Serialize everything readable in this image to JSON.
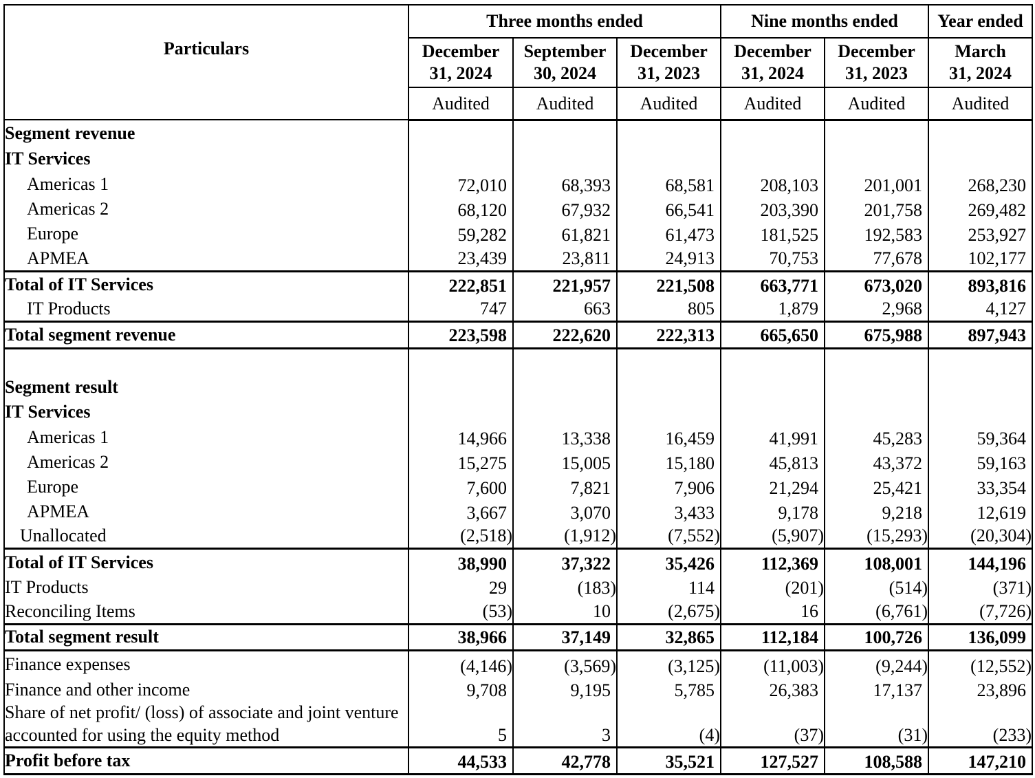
{
  "header": {
    "particulars": "Particulars",
    "groups": [
      "Three months ended",
      "Nine months ended",
      "Year ended"
    ],
    "dates": [
      [
        "December",
        "31, 2024"
      ],
      [
        "September",
        "30, 2024"
      ],
      [
        "December",
        "31, 2023"
      ],
      [
        "December",
        "31, 2024"
      ],
      [
        "December",
        "31, 2023"
      ],
      [
        "March",
        "31, 2024"
      ]
    ],
    "status": [
      "Audited",
      "Audited",
      "Audited",
      "Audited",
      "Audited",
      "Audited"
    ]
  },
  "rows": [
    {
      "label": "Segment revenue",
      "type": "heading",
      "values": []
    },
    {
      "label": "IT Services",
      "type": "heading",
      "values": []
    },
    {
      "label": "Americas 1",
      "type": "indent",
      "values": [
        "72,010",
        "68,393",
        "68,581",
        "208,103",
        "201,001",
        "268,230"
      ]
    },
    {
      "label": "Americas 2",
      "type": "indent",
      "values": [
        "68,120",
        "67,932",
        "66,541",
        "203,390",
        "201,758",
        "269,482"
      ]
    },
    {
      "label": "Europe",
      "type": "indent",
      "values": [
        "59,282",
        "61,821",
        "61,473",
        "181,525",
        "192,583",
        "253,927"
      ]
    },
    {
      "label": "APMEA",
      "type": "indent",
      "values": [
        "23,439",
        "23,811",
        "24,913",
        "70,753",
        "77,678",
        "102,177"
      ]
    },
    {
      "label": "Total of IT Services",
      "type": "total",
      "values": [
        "222,851",
        "221,957",
        "221,508",
        "663,771",
        "673,020",
        "893,816"
      ]
    },
    {
      "label": "IT Products",
      "type": "indent",
      "values": [
        "747",
        "663",
        "805",
        "1,879",
        "2,968",
        "4,127"
      ]
    },
    {
      "label": "Total segment revenue",
      "type": "grand",
      "values": [
        "223,598",
        "222,620",
        "222,313",
        "665,650",
        "675,988",
        "897,943"
      ]
    },
    {
      "label": "",
      "type": "blank",
      "values": []
    },
    {
      "label": "Segment result",
      "type": "heading",
      "values": []
    },
    {
      "label": "IT Services",
      "type": "heading",
      "values": []
    },
    {
      "label": "Americas 1",
      "type": "indent",
      "values": [
        "14,966",
        "13,338",
        "16,459",
        "41,991",
        "45,283",
        "59,364"
      ]
    },
    {
      "label": "Americas 2",
      "type": "indent",
      "values": [
        "15,275",
        "15,005",
        "15,180",
        "45,813",
        "43,372",
        "59,163"
      ]
    },
    {
      "label": "Europe",
      "type": "indent",
      "values": [
        "7,600",
        "7,821",
        "7,906",
        "21,294",
        "25,421",
        "33,354"
      ]
    },
    {
      "label": "APMEA",
      "type": "indent",
      "values": [
        "3,667",
        "3,070",
        "3,433",
        "9,178",
        "9,218",
        "12,619"
      ]
    },
    {
      "label": "Unallocated",
      "type": "indent-small",
      "values": [
        "(2,518)",
        "(1,912)",
        "(7,552)",
        "(5,907)",
        "(15,293)",
        "(20,304)"
      ]
    },
    {
      "label": "Total of IT Services",
      "type": "total",
      "values": [
        "38,990",
        "37,322",
        "35,426",
        "112,369",
        "108,001",
        "144,196"
      ]
    },
    {
      "label": "IT Products",
      "type": "plain",
      "values": [
        "29",
        "(183)",
        "114",
        "(201)",
        "(514)",
        "(371)"
      ]
    },
    {
      "label": "Reconciling Items",
      "type": "plain",
      "values": [
        "(53)",
        "10",
        "(2,675)",
        "16",
        "(6,761)",
        "(7,726)"
      ]
    },
    {
      "label": "Total segment result",
      "type": "grand",
      "values": [
        "38,966",
        "37,149",
        "32,865",
        "112,184",
        "100,726",
        "136,099"
      ]
    },
    {
      "label": "Finance expenses",
      "type": "plain",
      "values": [
        "(4,146)",
        "(3,569)",
        "(3,125)",
        "(11,003)",
        "(9,244)",
        "(12,552)"
      ]
    },
    {
      "label": "Finance and other income",
      "type": "plain",
      "values": [
        "9,708",
        "9,195",
        "5,785",
        "26,383",
        "17,137",
        "23,896"
      ]
    },
    {
      "label": "Share of net profit/ (loss) of associate and joint venture accounted for using the equity method",
      "type": "wrap",
      "values": [
        "5",
        "3",
        "(4)",
        "(37)",
        "(31)",
        "(233)"
      ]
    },
    {
      "label": "Profit before tax",
      "type": "final",
      "values": [
        "44,533",
        "42,778",
        "35,521",
        "127,527",
        "108,588",
        "147,210"
      ]
    }
  ]
}
